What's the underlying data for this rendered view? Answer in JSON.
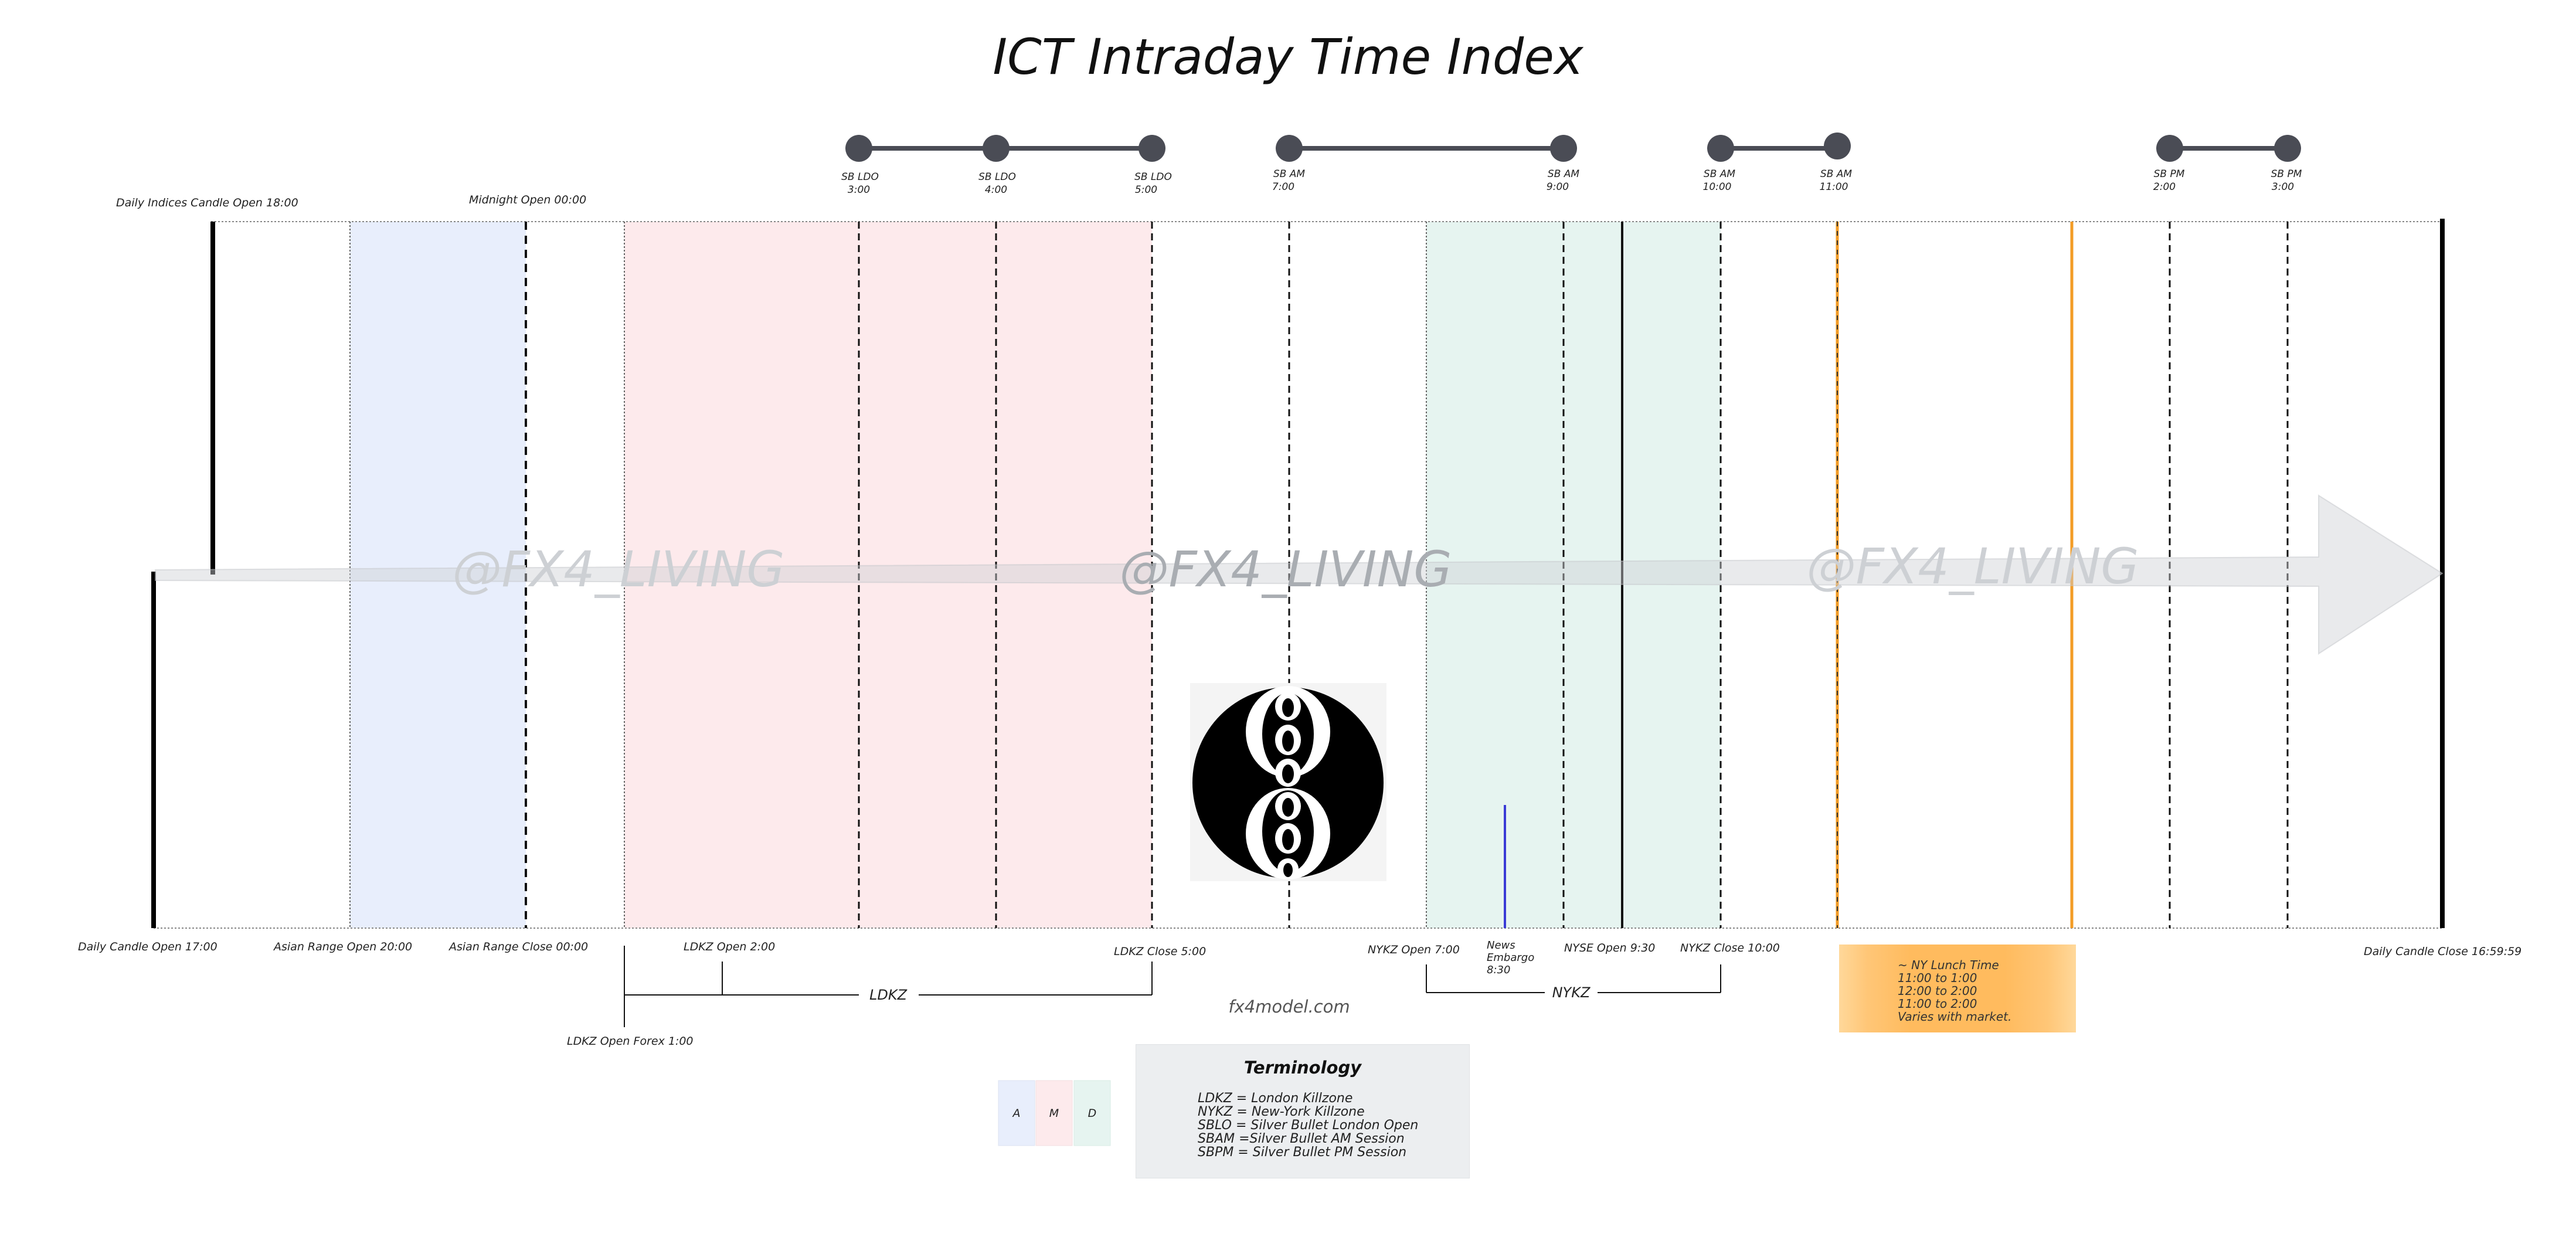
{
  "title": "ICT Intraday Time Index",
  "watermark": "@FX4_LIVING",
  "site": "fx4model.com",
  "silver_bullets": [
    {
      "label": "SB LDO",
      "time": "3:00"
    },
    {
      "label": "SB LDO",
      "time": "4:00"
    },
    {
      "label": "SB LDO",
      "time": "5:00"
    },
    {
      "label": "SB AM",
      "time": "7:00"
    },
    {
      "label": "SB AM",
      "time": "9:00"
    },
    {
      "label": "SB AM",
      "time": "10:00"
    },
    {
      "label": "SB AM",
      "time": "11:00"
    },
    {
      "label": "SB PM",
      "time": "2:00"
    },
    {
      "label": "SB PM",
      "time": "3:00"
    }
  ],
  "top_markers": {
    "daily_indices_open": "Daily Indices Candle Open 18:00",
    "midnight_open": "Midnight Open 00:00"
  },
  "bottom_markers": {
    "daily_open": "Daily Candle Open 17:00",
    "asian_range_open": "Asian Range Open 20:00",
    "asian_range_close": "Asian Range Close 00:00",
    "ldkz_open": "LDKZ Open 2:00",
    "ldkz_close": "LDKZ Close 5:00",
    "nykz_open": "NYKZ Open 7:00",
    "news_embargo": [
      "News",
      "Embargo",
      "8:30"
    ],
    "nyse_open": "NYSE Open 9:30",
    "nykz_close": "NYKZ Close 10:00",
    "daily_close": "Daily Candle Close 16:59:59",
    "ldkz_forex_open": "LDKZ Open Forex 1:00"
  },
  "brackets": {
    "ldkz": "LDKZ",
    "nykz": "NYKZ"
  },
  "lunch": {
    "lines": [
      "~ NY Lunch Time",
      "11:00 to 1:00",
      "12:00 to 2:00",
      "11:00 to 2:00",
      "Varies with market."
    ]
  },
  "legend": [
    {
      "letter": "A",
      "color": "#e8eefc"
    },
    {
      "letter": "M",
      "color": "#fdeaec"
    },
    {
      "letter": "D",
      "color": "#e6f4f0"
    }
  ],
  "terminology": {
    "title": "Terminology",
    "items": [
      "LDKZ = London Killzone",
      "NYKZ = New-York Killzone",
      "SBLO = Silver Bullet London Open",
      "SBAM =Silver Bullet AM Session",
      "SBPM = Silver Bullet PM Session"
    ]
  },
  "colors": {
    "asian": "#e8eefc",
    "london": "#fdeaec",
    "newyork": "#e6f4f0",
    "lunch": "#ffbb5e",
    "lunch_line": "#f39c26",
    "news_line": "#3b3bd6",
    "sb_dot": "#4a4c55"
  }
}
